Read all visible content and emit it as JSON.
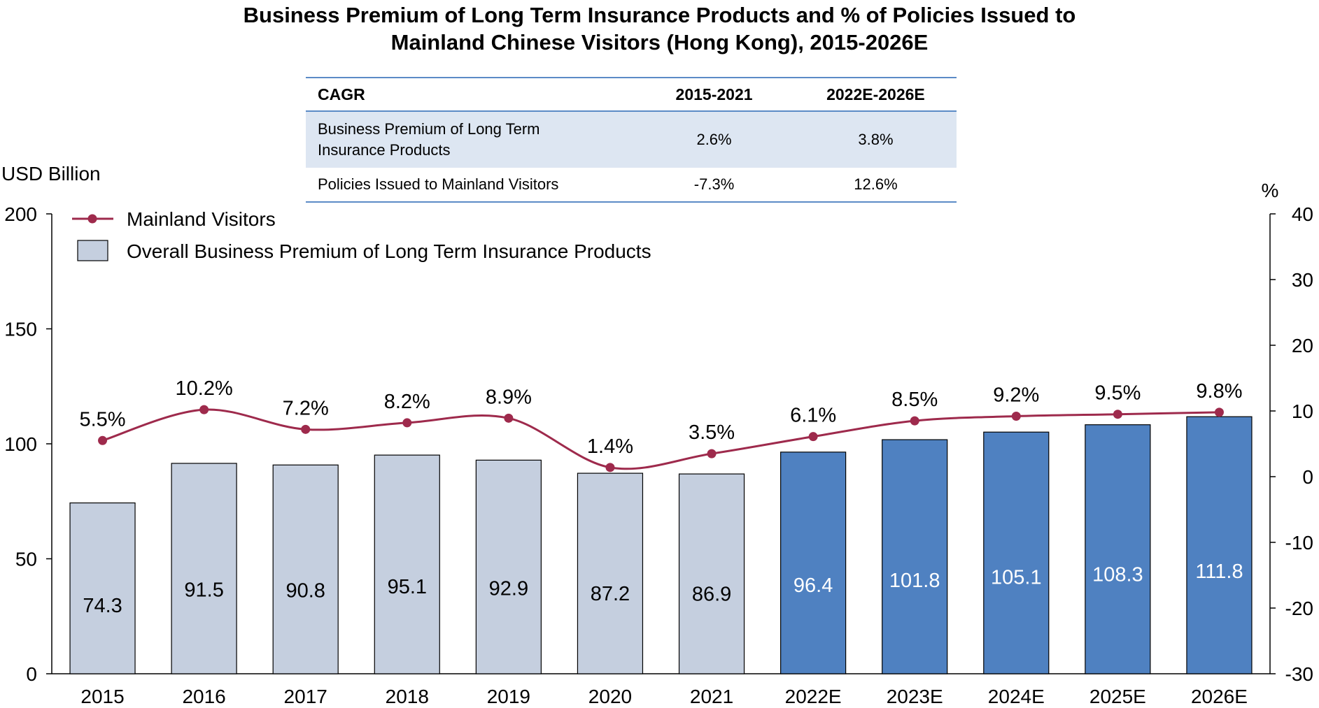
{
  "title": {
    "line1": "Business Premium of Long Term Insurance Products and % of Policies Issued to",
    "line2": "Mainland Chinese Visitors (Hong Kong), 2015-2026E"
  },
  "cagr_table": {
    "header": [
      "CAGR",
      "2015-2021",
      "2022E-2026E"
    ],
    "rows": [
      {
        "label_line1": "Business Premium of Long Term",
        "label_line2": "Insurance Products",
        "v1": "2.6%",
        "v2": "3.8%"
      },
      {
        "label_line1": "Policies Issued to Mainland Visitors",
        "label_line2": "",
        "v1": "-7.3%",
        "v2": "12.6%"
      }
    ]
  },
  "colors": {
    "actual_bar": "#c5cfdf",
    "forecast_bar": "#4f81c1",
    "line": "#9e2a4c",
    "table_rule": "#5b8bc6",
    "table_shade": "#dde6f2"
  },
  "chart_data": {
    "type": "bar",
    "categories": [
      "2015",
      "2016",
      "2017",
      "2018",
      "2019",
      "2020",
      "2021",
      "2022E",
      "2023E",
      "2024E",
      "2025E",
      "2026E"
    ],
    "series": [
      {
        "name": "Overall Business Premium of Long Term Insurance Products",
        "axis": "left",
        "values": [
          74.3,
          91.5,
          90.8,
          95.1,
          92.9,
          87.2,
          86.9,
          96.4,
          101.8,
          105.1,
          108.3,
          111.8
        ],
        "labels": [
          "74.3",
          "91.5",
          "90.8",
          "95.1",
          "92.9",
          "87.2",
          "86.9",
          "96.4",
          "101.8",
          "105.1",
          "108.3",
          "111.8"
        ],
        "forecast_from_index": 7
      },
      {
        "name": "Mainland Visitors",
        "axis": "right",
        "type": "line",
        "values": [
          5.5,
          10.2,
          7.2,
          8.2,
          8.9,
          1.4,
          3.5,
          6.1,
          8.5,
          9.2,
          9.5,
          9.8
        ],
        "labels": [
          "5.5%",
          "10.2%",
          "7.2%",
          "8.2%",
          "8.9%",
          "1.4%",
          "3.5%",
          "6.1%",
          "8.5%",
          "9.2%",
          "9.5%",
          "9.8%"
        ]
      }
    ],
    "left_axis": {
      "label": "USD Billion",
      "ylim": [
        0,
        200
      ],
      "ticks": [
        "0",
        "50",
        "100",
        "150",
        "200"
      ]
    },
    "right_axis": {
      "label": "%",
      "ylim": [
        -30,
        40
      ],
      "ticks": [
        "-30",
        "-20",
        "-10",
        "0",
        "10",
        "20",
        "30",
        "40"
      ]
    },
    "legend": {
      "position": "top-left",
      "line_label": "Mainland Visitors",
      "bar_label": "Overall Business Premium of Long Term Insurance Products"
    }
  }
}
